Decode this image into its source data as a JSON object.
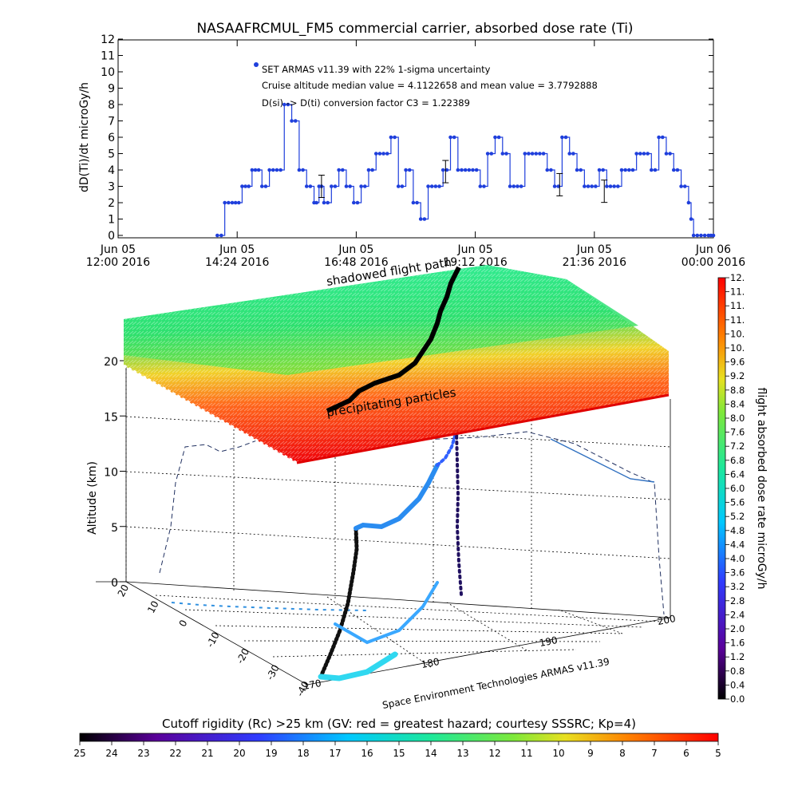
{
  "chart_data": [
    {
      "type": "scatter",
      "title": "NASAAFRCMUL_FM5 commercial carrier, absorbed dose rate (Ti)",
      "ylabel": "dD(Ti)/dt microGy/h",
      "ylim": [
        0,
        12
      ],
      "yticks": [
        "0",
        "1",
        "2",
        "3",
        "4",
        "5",
        "6",
        "7",
        "8",
        "9",
        "10",
        "11",
        "12"
      ],
      "xticks": [
        {
          "line1": "Jun 05",
          "line2": "12:00 2016"
        },
        {
          "line1": "Jun 05",
          "line2": "14:24 2016"
        },
        {
          "line1": "Jun 05",
          "line2": "16:48 2016"
        },
        {
          "line1": "Jun 05",
          "line2": "19:12 2016"
        },
        {
          "line1": "Jun 05",
          "line2": "21:36 2016"
        },
        {
          "line1": "Jun 06",
          "line2": "00:00 2016"
        }
      ],
      "annotations": [
        "SET ARMAS v11.39 with 22% 1-sigma uncertainty",
        "Cruise altitude median value = 4.1122658 and mean value = 3.7792888",
        "D(si) -> D(ti) conversion factor C3 = 1.22389"
      ],
      "series": [
        {
          "name": "",
          "color": "#1f3fdc",
          "x_hours_from_start": [
            2.0,
            2.08,
            2.15,
            2.3,
            2.5,
            2.7,
            2.9,
            3.05,
            3.2,
            3.35,
            3.5,
            3.65,
            3.8,
            3.95,
            4.05,
            4.15,
            4.3,
            4.45,
            4.6,
            4.75,
            4.9,
            5.05,
            5.2,
            5.35,
            5.5,
            5.65,
            5.8,
            5.95,
            6.1,
            6.25,
            6.4,
            6.55,
            6.7,
            6.85,
            7.0,
            7.15,
            7.3,
            7.45,
            7.6,
            7.75,
            7.9,
            8.05,
            8.2,
            8.35,
            8.5,
            8.65,
            8.8,
            8.95,
            9.1,
            9.25,
            9.4,
            9.55,
            9.7,
            9.85,
            10.0,
            10.15,
            10.3,
            10.45,
            10.6,
            10.75,
            10.9,
            11.05,
            11.2,
            11.35,
            11.5,
            11.55,
            11.6,
            11.75,
            11.9,
            12.0
          ],
          "y": [
            0.0,
            0.0,
            2.0,
            2.0,
            3.0,
            4.0,
            3.0,
            4.0,
            4.0,
            8.0,
            7.0,
            4.0,
            3.0,
            2.0,
            3.0,
            2.0,
            3.0,
            4.0,
            3.0,
            2.0,
            3.0,
            4.0,
            5.0,
            5.0,
            6.0,
            3.0,
            4.0,
            2.0,
            1.0,
            3.0,
            3.0,
            4.0,
            6.0,
            4.0,
            4.0,
            4.0,
            3.0,
            5.0,
            6.0,
            5.0,
            3.0,
            3.0,
            5.0,
            5.0,
            5.0,
            4.0,
            3.0,
            6.0,
            5.0,
            4.0,
            3.0,
            3.0,
            4.0,
            3.0,
            3.0,
            4.0,
            4.0,
            5.0,
            5.0,
            4.0,
            6.0,
            5.0,
            4.0,
            3.0,
            2.0,
            1.0,
            0.0,
            0.0,
            0.0,
            0.0
          ]
        }
      ]
    },
    {
      "type": "scatter",
      "subtype": "3d",
      "zlabel": "Altitude (km)",
      "zticks": [
        "0",
        "5",
        "10",
        "15",
        "20"
      ],
      "lat_ticks": [
        "20",
        "10",
        "0",
        "-10",
        "-20",
        "-30",
        "-40"
      ],
      "lon_ticks": [
        "170",
        "180",
        "190",
        "200"
      ],
      "overlay_labels": [
        "shadowed flight path",
        "precipitating particles"
      ],
      "footer_label": "Space Environment Technologies ARMAS v11.39",
      "colorbar_label": "flight absorbed dose rate microGy/h",
      "colorbar_ticks": [
        "0.0",
        "0.4",
        "0.8",
        "1.2",
        "1.6",
        "2.0",
        "2.4",
        "2.8",
        "3.2",
        "3.6",
        "4.0",
        "4.4",
        "4.8",
        "5.2",
        "5.6",
        "6.0",
        "6.4",
        "6.8",
        "7.2",
        "7.6",
        "8.0",
        "8.4",
        "8.8",
        "9.2",
        "9.6",
        "10.",
        "10.",
        "11.",
        "11.",
        "11.",
        "12."
      ],
      "bottom_colorbar_label": "Cutoff rigidity (Rc) >25 km (GV: red = greatest hazard; courtesy SSSRC; Kp=4)",
      "bottom_colorbar_ticks": [
        "25",
        "24",
        "23",
        "22",
        "21",
        "20",
        "19",
        "18",
        "17",
        "16",
        "15",
        "14",
        "13",
        "12",
        "11",
        "10",
        "9",
        "8",
        "7",
        "6",
        "5"
      ]
    }
  ]
}
